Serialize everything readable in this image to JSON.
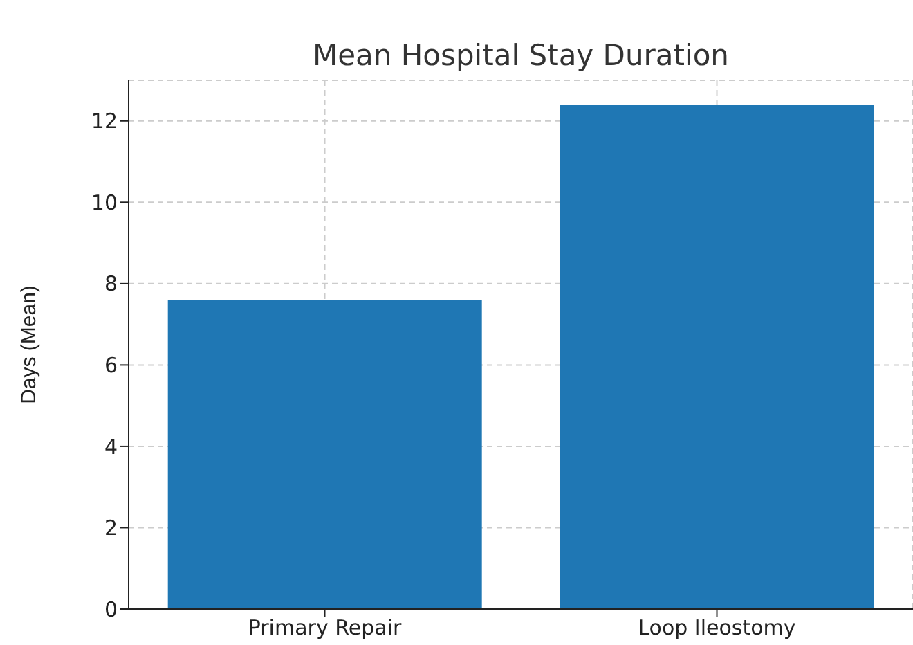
{
  "chart_data": {
    "type": "bar",
    "title": "Mean Hospital Stay Duration",
    "ylabel": "Days (Mean)",
    "categories": [
      "Primary Repair",
      "Loop Ileostomy"
    ],
    "values": [
      7.6,
      12.4
    ],
    "color": "#1f77b4",
    "ylim": [
      0,
      13
    ],
    "yticks": [
      0,
      2,
      4,
      6,
      8,
      10,
      12
    ],
    "grid": true
  }
}
